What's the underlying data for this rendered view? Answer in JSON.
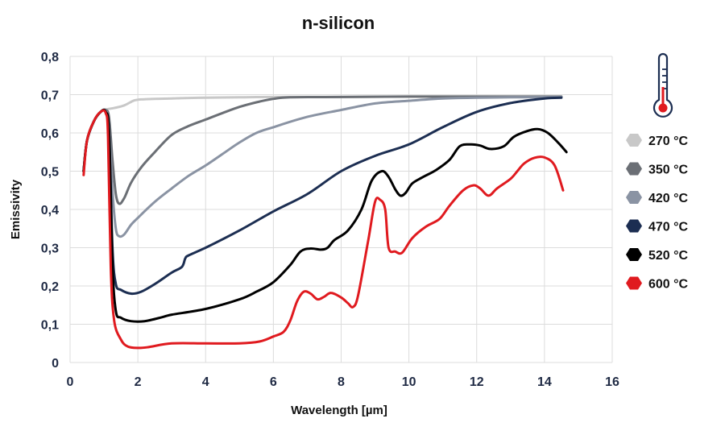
{
  "chart_data": {
    "type": "line",
    "title": "n-silicon",
    "xlabel": "Wavelength [µm]",
    "ylabel": "Emissivity",
    "xlim": [
      0,
      16
    ],
    "ylim": [
      0,
      0.8
    ],
    "xticks": [
      0,
      2,
      4,
      6,
      8,
      10,
      12,
      14,
      16
    ],
    "xtick_labels": [
      "0",
      "2",
      "4",
      "6",
      "8",
      "10",
      "12",
      "14",
      "16"
    ],
    "yticks": [
      0,
      0.1,
      0.2,
      0.3,
      0.4,
      0.5,
      0.6,
      0.7,
      0.8
    ],
    "ytick_labels": [
      "0",
      "0,1",
      "0,2",
      "0,3",
      "0,4",
      "0,5",
      "0,6",
      "0,7",
      "0,8"
    ],
    "grid": true,
    "legend_position": "right",
    "series": [
      {
        "name": "270 °C",
        "color": "#c8c8c8",
        "points": [
          [
            0.4,
            0.5
          ],
          [
            0.5,
            0.58
          ],
          [
            0.7,
            0.63
          ],
          [
            0.9,
            0.655
          ],
          [
            1.1,
            0.662
          ],
          [
            1.3,
            0.665
          ],
          [
            1.6,
            0.672
          ],
          [
            1.9,
            0.685
          ],
          [
            2.2,
            0.688
          ],
          [
            3,
            0.69
          ],
          [
            4,
            0.692
          ],
          [
            5,
            0.693
          ],
          [
            6,
            0.694
          ],
          [
            8,
            0.694
          ],
          [
            10,
            0.695
          ],
          [
            12,
            0.695
          ],
          [
            13,
            0.695
          ],
          [
            14.5,
            0.695
          ]
        ]
      },
      {
        "name": "350 °C",
        "color": "#6b6f75",
        "points": [
          [
            0.4,
            0.5
          ],
          [
            0.5,
            0.58
          ],
          [
            0.7,
            0.63
          ],
          [
            0.9,
            0.655
          ],
          [
            1.05,
            0.66
          ],
          [
            1.15,
            0.64
          ],
          [
            1.25,
            0.53
          ],
          [
            1.35,
            0.44
          ],
          [
            1.45,
            0.415
          ],
          [
            1.6,
            0.43
          ],
          [
            1.8,
            0.47
          ],
          [
            2.1,
            0.51
          ],
          [
            2.5,
            0.55
          ],
          [
            3,
            0.595
          ],
          [
            3.5,
            0.618
          ],
          [
            4,
            0.635
          ],
          [
            4.5,
            0.652
          ],
          [
            5,
            0.668
          ],
          [
            5.5,
            0.68
          ],
          [
            6,
            0.689
          ],
          [
            6.5,
            0.693
          ],
          [
            8,
            0.694
          ],
          [
            10,
            0.695
          ],
          [
            12,
            0.695
          ],
          [
            14.5,
            0.695
          ]
        ]
      },
      {
        "name": "420 °C",
        "color": "#8a93a3",
        "points": [
          [
            0.4,
            0.5
          ],
          [
            0.5,
            0.58
          ],
          [
            0.7,
            0.63
          ],
          [
            0.9,
            0.655
          ],
          [
            1.05,
            0.658
          ],
          [
            1.15,
            0.62
          ],
          [
            1.25,
            0.45
          ],
          [
            1.35,
            0.35
          ],
          [
            1.45,
            0.33
          ],
          [
            1.6,
            0.335
          ],
          [
            1.8,
            0.36
          ],
          [
            2,
            0.378
          ],
          [
            2.5,
            0.42
          ],
          [
            3,
            0.455
          ],
          [
            3.5,
            0.488
          ],
          [
            4,
            0.515
          ],
          [
            4.5,
            0.545
          ],
          [
            5,
            0.575
          ],
          [
            5.5,
            0.6
          ],
          [
            6,
            0.615
          ],
          [
            7,
            0.642
          ],
          [
            8,
            0.66
          ],
          [
            9,
            0.677
          ],
          [
            10,
            0.684
          ],
          [
            11,
            0.69
          ],
          [
            12,
            0.692
          ],
          [
            13,
            0.693
          ],
          [
            14.5,
            0.694
          ]
        ]
      },
      {
        "name": "470 °C",
        "color": "#1c2e52",
        "points": [
          [
            0.4,
            0.5
          ],
          [
            0.5,
            0.58
          ],
          [
            0.7,
            0.63
          ],
          [
            0.9,
            0.655
          ],
          [
            1.05,
            0.655
          ],
          [
            1.15,
            0.6
          ],
          [
            1.25,
            0.3
          ],
          [
            1.35,
            0.205
          ],
          [
            1.5,
            0.19
          ],
          [
            1.8,
            0.18
          ],
          [
            2.1,
            0.185
          ],
          [
            2.5,
            0.205
          ],
          [
            3,
            0.235
          ],
          [
            3.3,
            0.25
          ],
          [
            3.4,
            0.272
          ],
          [
            3.5,
            0.28
          ],
          [
            4,
            0.3
          ],
          [
            5,
            0.345
          ],
          [
            6,
            0.395
          ],
          [
            7,
            0.44
          ],
          [
            8,
            0.5
          ],
          [
            9,
            0.54
          ],
          [
            10,
            0.57
          ],
          [
            11,
            0.615
          ],
          [
            12,
            0.655
          ],
          [
            13,
            0.678
          ],
          [
            14,
            0.69
          ],
          [
            14.5,
            0.692
          ]
        ]
      },
      {
        "name": "520 °C",
        "color": "#000000",
        "points": [
          [
            0.4,
            0.5
          ],
          [
            0.5,
            0.58
          ],
          [
            0.7,
            0.63
          ],
          [
            0.9,
            0.655
          ],
          [
            1.05,
            0.655
          ],
          [
            1.15,
            0.6
          ],
          [
            1.25,
            0.26
          ],
          [
            1.35,
            0.135
          ],
          [
            1.5,
            0.117
          ],
          [
            1.8,
            0.108
          ],
          [
            2.2,
            0.108
          ],
          [
            2.7,
            0.118
          ],
          [
            3,
            0.125
          ],
          [
            4,
            0.14
          ],
          [
            5,
            0.165
          ],
          [
            5.5,
            0.185
          ],
          [
            6,
            0.21
          ],
          [
            6.5,
            0.255
          ],
          [
            6.8,
            0.29
          ],
          [
            7.1,
            0.298
          ],
          [
            7.4,
            0.295
          ],
          [
            7.6,
            0.3
          ],
          [
            7.8,
            0.32
          ],
          [
            8.2,
            0.345
          ],
          [
            8.6,
            0.4
          ],
          [
            8.9,
            0.475
          ],
          [
            9.2,
            0.5
          ],
          [
            9.4,
            0.485
          ],
          [
            9.6,
            0.452
          ],
          [
            9.75,
            0.436
          ],
          [
            9.9,
            0.443
          ],
          [
            10.1,
            0.468
          ],
          [
            10.4,
            0.484
          ],
          [
            10.8,
            0.503
          ],
          [
            11.2,
            0.53
          ],
          [
            11.5,
            0.565
          ],
          [
            11.8,
            0.57
          ],
          [
            12.1,
            0.567
          ],
          [
            12.4,
            0.558
          ],
          [
            12.8,
            0.565
          ],
          [
            13.1,
            0.59
          ],
          [
            13.5,
            0.605
          ],
          [
            13.8,
            0.61
          ],
          [
            14.1,
            0.6
          ],
          [
            14.4,
            0.575
          ],
          [
            14.65,
            0.55
          ]
        ]
      },
      {
        "name": "600 °C",
        "color": "#e01a1f",
        "points": [
          [
            0.4,
            0.49
          ],
          [
            0.5,
            0.58
          ],
          [
            0.7,
            0.63
          ],
          [
            0.9,
            0.655
          ],
          [
            1.05,
            0.652
          ],
          [
            1.12,
            0.59
          ],
          [
            1.2,
            0.25
          ],
          [
            1.3,
            0.11
          ],
          [
            1.5,
            0.06
          ],
          [
            1.7,
            0.042
          ],
          [
            2,
            0.038
          ],
          [
            2.3,
            0.04
          ],
          [
            3,
            0.05
          ],
          [
            4,
            0.05
          ],
          [
            5,
            0.05
          ],
          [
            5.6,
            0.055
          ],
          [
            6,
            0.068
          ],
          [
            6.3,
            0.08
          ],
          [
            6.5,
            0.11
          ],
          [
            6.7,
            0.16
          ],
          [
            6.9,
            0.185
          ],
          [
            7.1,
            0.18
          ],
          [
            7.3,
            0.165
          ],
          [
            7.5,
            0.172
          ],
          [
            7.7,
            0.182
          ],
          [
            8,
            0.17
          ],
          [
            8.2,
            0.155
          ],
          [
            8.35,
            0.145
          ],
          [
            8.5,
            0.175
          ],
          [
            8.8,
            0.32
          ],
          [
            9,
            0.42
          ],
          [
            9.15,
            0.425
          ],
          [
            9.3,
            0.4
          ],
          [
            9.4,
            0.3
          ],
          [
            9.6,
            0.29
          ],
          [
            9.8,
            0.287
          ],
          [
            10.1,
            0.325
          ],
          [
            10.5,
            0.355
          ],
          [
            10.9,
            0.375
          ],
          [
            11.2,
            0.41
          ],
          [
            11.6,
            0.45
          ],
          [
            11.9,
            0.463
          ],
          [
            12.1,
            0.455
          ],
          [
            12.35,
            0.436
          ],
          [
            12.6,
            0.455
          ],
          [
            13,
            0.48
          ],
          [
            13.2,
            0.5
          ],
          [
            13.4,
            0.52
          ],
          [
            13.7,
            0.535
          ],
          [
            14,
            0.536
          ],
          [
            14.3,
            0.515
          ],
          [
            14.55,
            0.45
          ]
        ]
      }
    ]
  }
}
